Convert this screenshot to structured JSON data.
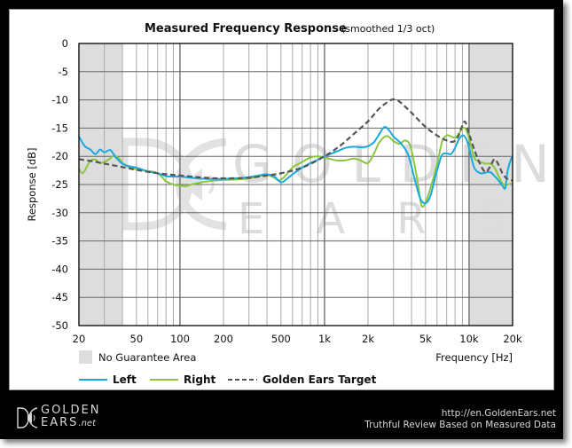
{
  "chart_data": {
    "type": "line",
    "title": "Measured Frequency Response",
    "subtitle": "(smoothed  1/3 oct)",
    "xlabel": "Frequency [Hz]",
    "ylabel": "Response [dB]",
    "xscale": "log",
    "xlim": [
      20,
      20000
    ],
    "ylim": [
      -50,
      0
    ],
    "grid": true,
    "x_ticks": [
      20,
      50,
      100,
      200,
      500,
      1000,
      2000,
      5000,
      10000,
      20000
    ],
    "x_tick_labels": [
      "20",
      "50",
      "100",
      "200",
      "500",
      "1k",
      "2k",
      "5k",
      "10k",
      "20k"
    ],
    "y_ticks": [
      0,
      -5,
      -10,
      -15,
      -20,
      -25,
      -30,
      -35,
      -40,
      -45,
      -50
    ],
    "y_tick_labels": [
      "0",
      "-5",
      "-10",
      "-15",
      "-20",
      "-25",
      "-30",
      "-35",
      "-40",
      "-45",
      "-50"
    ],
    "shaded_regions": [
      {
        "label": "No Guarantee Area",
        "x_from": 20,
        "x_to": 40
      },
      {
        "label": "No Guarantee Area",
        "x_from": 10000,
        "x_to": 20000
      }
    ],
    "legend_position": "bottom",
    "series": [
      {
        "name": "Left",
        "color": "#1ba8e0",
        "style": "solid",
        "points": [
          [
            20,
            -16.5
          ],
          [
            22,
            -18.2
          ],
          [
            24,
            -18.8
          ],
          [
            26,
            -19.6
          ],
          [
            28,
            -18.8
          ],
          [
            30,
            -19.3
          ],
          [
            33,
            -18.9
          ],
          [
            36,
            -20.2
          ],
          [
            40,
            -21.3
          ],
          [
            45,
            -21.8
          ],
          [
            50,
            -22.0
          ],
          [
            60,
            -22.7
          ],
          [
            70,
            -23.0
          ],
          [
            80,
            -23.5
          ],
          [
            90,
            -23.6
          ],
          [
            100,
            -23.6
          ],
          [
            120,
            -23.8
          ],
          [
            150,
            -24.0
          ],
          [
            200,
            -24.0
          ],
          [
            250,
            -23.9
          ],
          [
            300,
            -23.7
          ],
          [
            350,
            -23.4
          ],
          [
            400,
            -23.2
          ],
          [
            450,
            -23.6
          ],
          [
            500,
            -24.6
          ],
          [
            550,
            -24.0
          ],
          [
            600,
            -23.2
          ],
          [
            700,
            -22.0
          ],
          [
            800,
            -21.2
          ],
          [
            900,
            -20.6
          ],
          [
            1000,
            -20.0
          ],
          [
            1200,
            -19.2
          ],
          [
            1400,
            -18.5
          ],
          [
            1600,
            -18.3
          ],
          [
            1800,
            -18.4
          ],
          [
            2000,
            -18.2
          ],
          [
            2200,
            -17.5
          ],
          [
            2400,
            -16.0
          ],
          [
            2600,
            -14.8
          ],
          [
            2800,
            -15.4
          ],
          [
            3000,
            -16.5
          ],
          [
            3400,
            -17.8
          ],
          [
            3800,
            -19.8
          ],
          [
            4200,
            -24.0
          ],
          [
            4600,
            -27.5
          ],
          [
            5000,
            -28.3
          ],
          [
            5400,
            -27.0
          ],
          [
            6000,
            -22.5
          ],
          [
            6500,
            -19.8
          ],
          [
            7000,
            -19.5
          ],
          [
            7500,
            -19.6
          ],
          [
            8000,
            -18.5
          ],
          [
            8500,
            -17.0
          ],
          [
            9000,
            -16.3
          ],
          [
            9500,
            -16.8
          ],
          [
            10000,
            -18.5
          ],
          [
            10500,
            -20.8
          ],
          [
            11000,
            -22.3
          ],
          [
            12000,
            -23.0
          ],
          [
            13000,
            -22.9
          ],
          [
            14000,
            -22.8
          ],
          [
            15000,
            -23.5
          ],
          [
            16000,
            -24.3
          ],
          [
            17000,
            -25.2
          ],
          [
            17800,
            -25.6
          ],
          [
            18500,
            -22.5
          ],
          [
            19500,
            -20.5
          ],
          [
            20000,
            -20.3
          ]
        ]
      },
      {
        "name": "Right",
        "color": "#8cc63f",
        "style": "solid",
        "points": [
          [
            20,
            -22.2
          ],
          [
            21,
            -23.0
          ],
          [
            22,
            -22.5
          ],
          [
            24,
            -20.8
          ],
          [
            26,
            -20.6
          ],
          [
            28,
            -21.2
          ],
          [
            30,
            -21.0
          ],
          [
            32,
            -20.6
          ],
          [
            35,
            -19.9
          ],
          [
            38,
            -20.4
          ],
          [
            40,
            -21.2
          ],
          [
            45,
            -22.0
          ],
          [
            50,
            -22.3
          ],
          [
            60,
            -22.6
          ],
          [
            70,
            -23.0
          ],
          [
            80,
            -24.4
          ],
          [
            90,
            -25.0
          ],
          [
            100,
            -25.2
          ],
          [
            110,
            -25.3
          ],
          [
            120,
            -25.0
          ],
          [
            150,
            -24.5
          ],
          [
            200,
            -24.2
          ],
          [
            250,
            -24.1
          ],
          [
            300,
            -23.9
          ],
          [
            350,
            -23.6
          ],
          [
            400,
            -23.3
          ],
          [
            450,
            -23.8
          ],
          [
            480,
            -24.3
          ],
          [
            520,
            -23.8
          ],
          [
            600,
            -22.0
          ],
          [
            700,
            -21.0
          ],
          [
            800,
            -20.2
          ],
          [
            900,
            -20.0
          ],
          [
            1000,
            -20.2
          ],
          [
            1200,
            -20.7
          ],
          [
            1400,
            -20.7
          ],
          [
            1600,
            -20.4
          ],
          [
            1800,
            -20.8
          ],
          [
            2000,
            -21.2
          ],
          [
            2200,
            -19.5
          ],
          [
            2400,
            -17.5
          ],
          [
            2700,
            -16.4
          ],
          [
            3000,
            -17.3
          ],
          [
            3300,
            -17.8
          ],
          [
            3600,
            -17.2
          ],
          [
            3900,
            -18.0
          ],
          [
            4200,
            -21.5
          ],
          [
            4500,
            -26.0
          ],
          [
            4700,
            -28.8
          ],
          [
            5000,
            -28.2
          ],
          [
            5500,
            -25.0
          ],
          [
            6000,
            -21.5
          ],
          [
            6500,
            -17.5
          ],
          [
            7000,
            -16.3
          ],
          [
            7500,
            -16.5
          ],
          [
            8000,
            -16.7
          ],
          [
            8500,
            -16.0
          ],
          [
            9000,
            -15.0
          ],
          [
            9500,
            -15.2
          ],
          [
            10000,
            -16.8
          ],
          [
            10500,
            -19.0
          ],
          [
            11000,
            -20.5
          ],
          [
            12000,
            -21.0
          ],
          [
            13000,
            -21.3
          ],
          [
            14000,
            -21.3
          ],
          [
            15000,
            -22.0
          ],
          [
            16000,
            -23.5
          ],
          [
            17000,
            -24.8
          ],
          [
            18000,
            -25.1
          ],
          [
            19000,
            -24.9
          ],
          [
            20000,
            -24.9
          ]
        ]
      },
      {
        "name": "Golden Ears Target",
        "color": "#555555",
        "style": "dashed",
        "points": [
          [
            20,
            -20.5
          ],
          [
            25,
            -20.9
          ],
          [
            30,
            -21.3
          ],
          [
            40,
            -21.9
          ],
          [
            50,
            -22.4
          ],
          [
            70,
            -23.0
          ],
          [
            100,
            -23.4
          ],
          [
            150,
            -23.8
          ],
          [
            200,
            -23.9
          ],
          [
            300,
            -23.8
          ],
          [
            400,
            -23.4
          ],
          [
            500,
            -23.0
          ],
          [
            700,
            -22.0
          ],
          [
            1000,
            -20.0
          ],
          [
            1300,
            -18.0
          ],
          [
            1600,
            -16.0
          ],
          [
            2000,
            -13.8
          ],
          [
            2400,
            -11.5
          ],
          [
            2800,
            -10.2
          ],
          [
            3000,
            -9.9
          ],
          [
            3300,
            -10.3
          ],
          [
            4000,
            -12.3
          ],
          [
            5000,
            -14.8
          ],
          [
            6000,
            -16.3
          ],
          [
            7000,
            -17.2
          ],
          [
            7800,
            -17.4
          ],
          [
            8400,
            -16.5
          ],
          [
            9000,
            -14.5
          ],
          [
            9400,
            -13.9
          ],
          [
            10000,
            -16.0
          ],
          [
            11000,
            -19.2
          ],
          [
            12000,
            -21.5
          ],
          [
            13000,
            -22.8
          ],
          [
            14000,
            -21.8
          ],
          [
            15000,
            -20.5
          ],
          [
            16000,
            -21.5
          ],
          [
            17000,
            -23.0
          ],
          [
            18000,
            -23.8
          ],
          [
            19000,
            -24.2
          ],
          [
            20000,
            -24.3
          ]
        ]
      }
    ]
  },
  "legend": {
    "no_guarantee_label": "No Guarantee Area",
    "left_label": "Left",
    "right_label": "Right",
    "target_label": "Golden Ears Target"
  },
  "watermark": {
    "line1": "GOLDEN",
    "line2": "EARS"
  },
  "footer": {
    "logo_line1": "GOLDEN",
    "logo_line2": "EARS",
    "logo_suffix": ".net",
    "url": "http://en.GoldenEars.net",
    "tagline": "Truthful Review Based on Measured Data"
  },
  "colors": {
    "shade": "#dddddd",
    "grid_minor": "#aaaaaa",
    "grid_major": "#666666"
  }
}
